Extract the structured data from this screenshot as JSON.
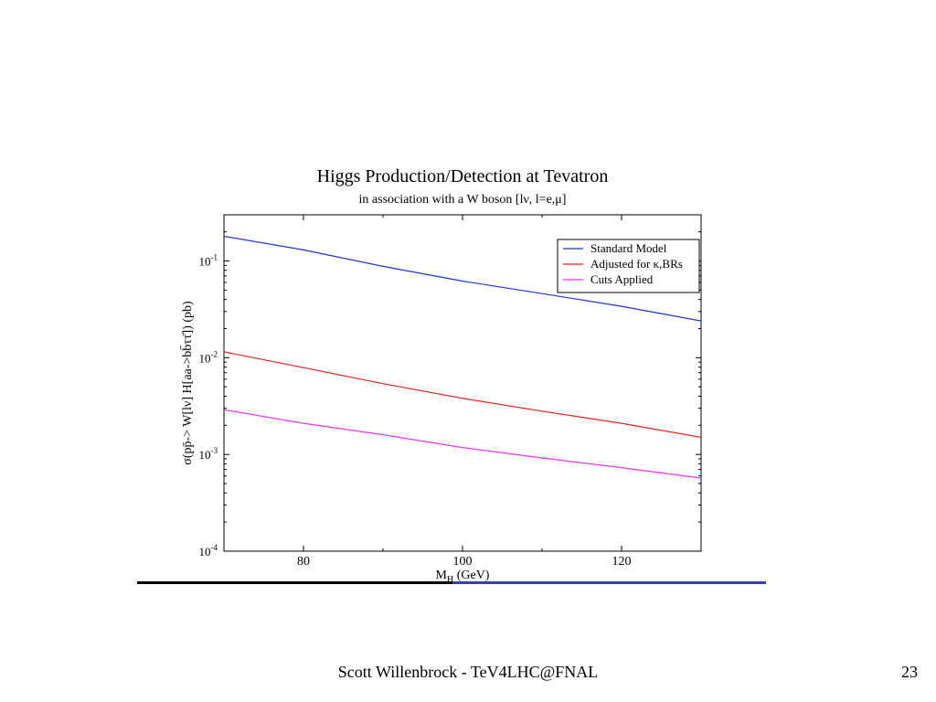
{
  "chart_data": {
    "type": "line",
    "title": "Higgs Production/Detection at Tevatron",
    "subtitle": "in association with a W boson [lν, l=e,μ]",
    "xlabel_main": "M",
    "xlabel_sub": "H",
    "xlabel_unit": " (GeV)",
    "ylabel": "σ(pp̄-> W[lν] H[aa->bb̄ττ̄]) (pb)",
    "xlim": [
      70,
      130
    ],
    "ylim": [
      0.0001,
      0.3
    ],
    "yscale": "log",
    "x_ticks": [
      {
        "value": 80,
        "label": "80"
      },
      {
        "value": 100,
        "label": "100"
      },
      {
        "value": 120,
        "label": "120"
      }
    ],
    "y_ticks": [
      {
        "value": 0.1,
        "base": "10",
        "exp": "-1"
      },
      {
        "value": 0.01,
        "base": "10",
        "exp": "-2"
      },
      {
        "value": 0.001,
        "base": "10",
        "exp": "-3"
      },
      {
        "value": 0.0001,
        "base": "10",
        "exp": "-4"
      }
    ],
    "legend_position": "top-right",
    "series": [
      {
        "name": "Standard Model",
        "color": "#2233cc",
        "x": [
          70,
          80,
          90,
          100,
          110,
          120,
          130
        ],
        "y": [
          0.18,
          0.13,
          0.088,
          0.062,
          0.046,
          0.034,
          0.024
        ]
      },
      {
        "name": "Adjusted for κ,BRs",
        "color": "#dd2222",
        "x": [
          70,
          80,
          90,
          100,
          110,
          120,
          130
        ],
        "y": [
          0.0115,
          0.0079,
          0.0054,
          0.0038,
          0.0028,
          0.0021,
          0.0015
        ]
      },
      {
        "name": "Cuts Applied",
        "color": "#ee33ee",
        "x": [
          70,
          80,
          90,
          100,
          110,
          120,
          130
        ],
        "y": [
          0.0029,
          0.0021,
          0.0016,
          0.00118,
          0.00092,
          0.00073,
          0.00057
        ]
      }
    ]
  },
  "footer": {
    "text": "Scott Willenbrock - TeV4LHC@FNAL",
    "slide_number": "23"
  },
  "colors": {
    "rule_left": "#000000",
    "rule_right": "#3a3fae"
  }
}
